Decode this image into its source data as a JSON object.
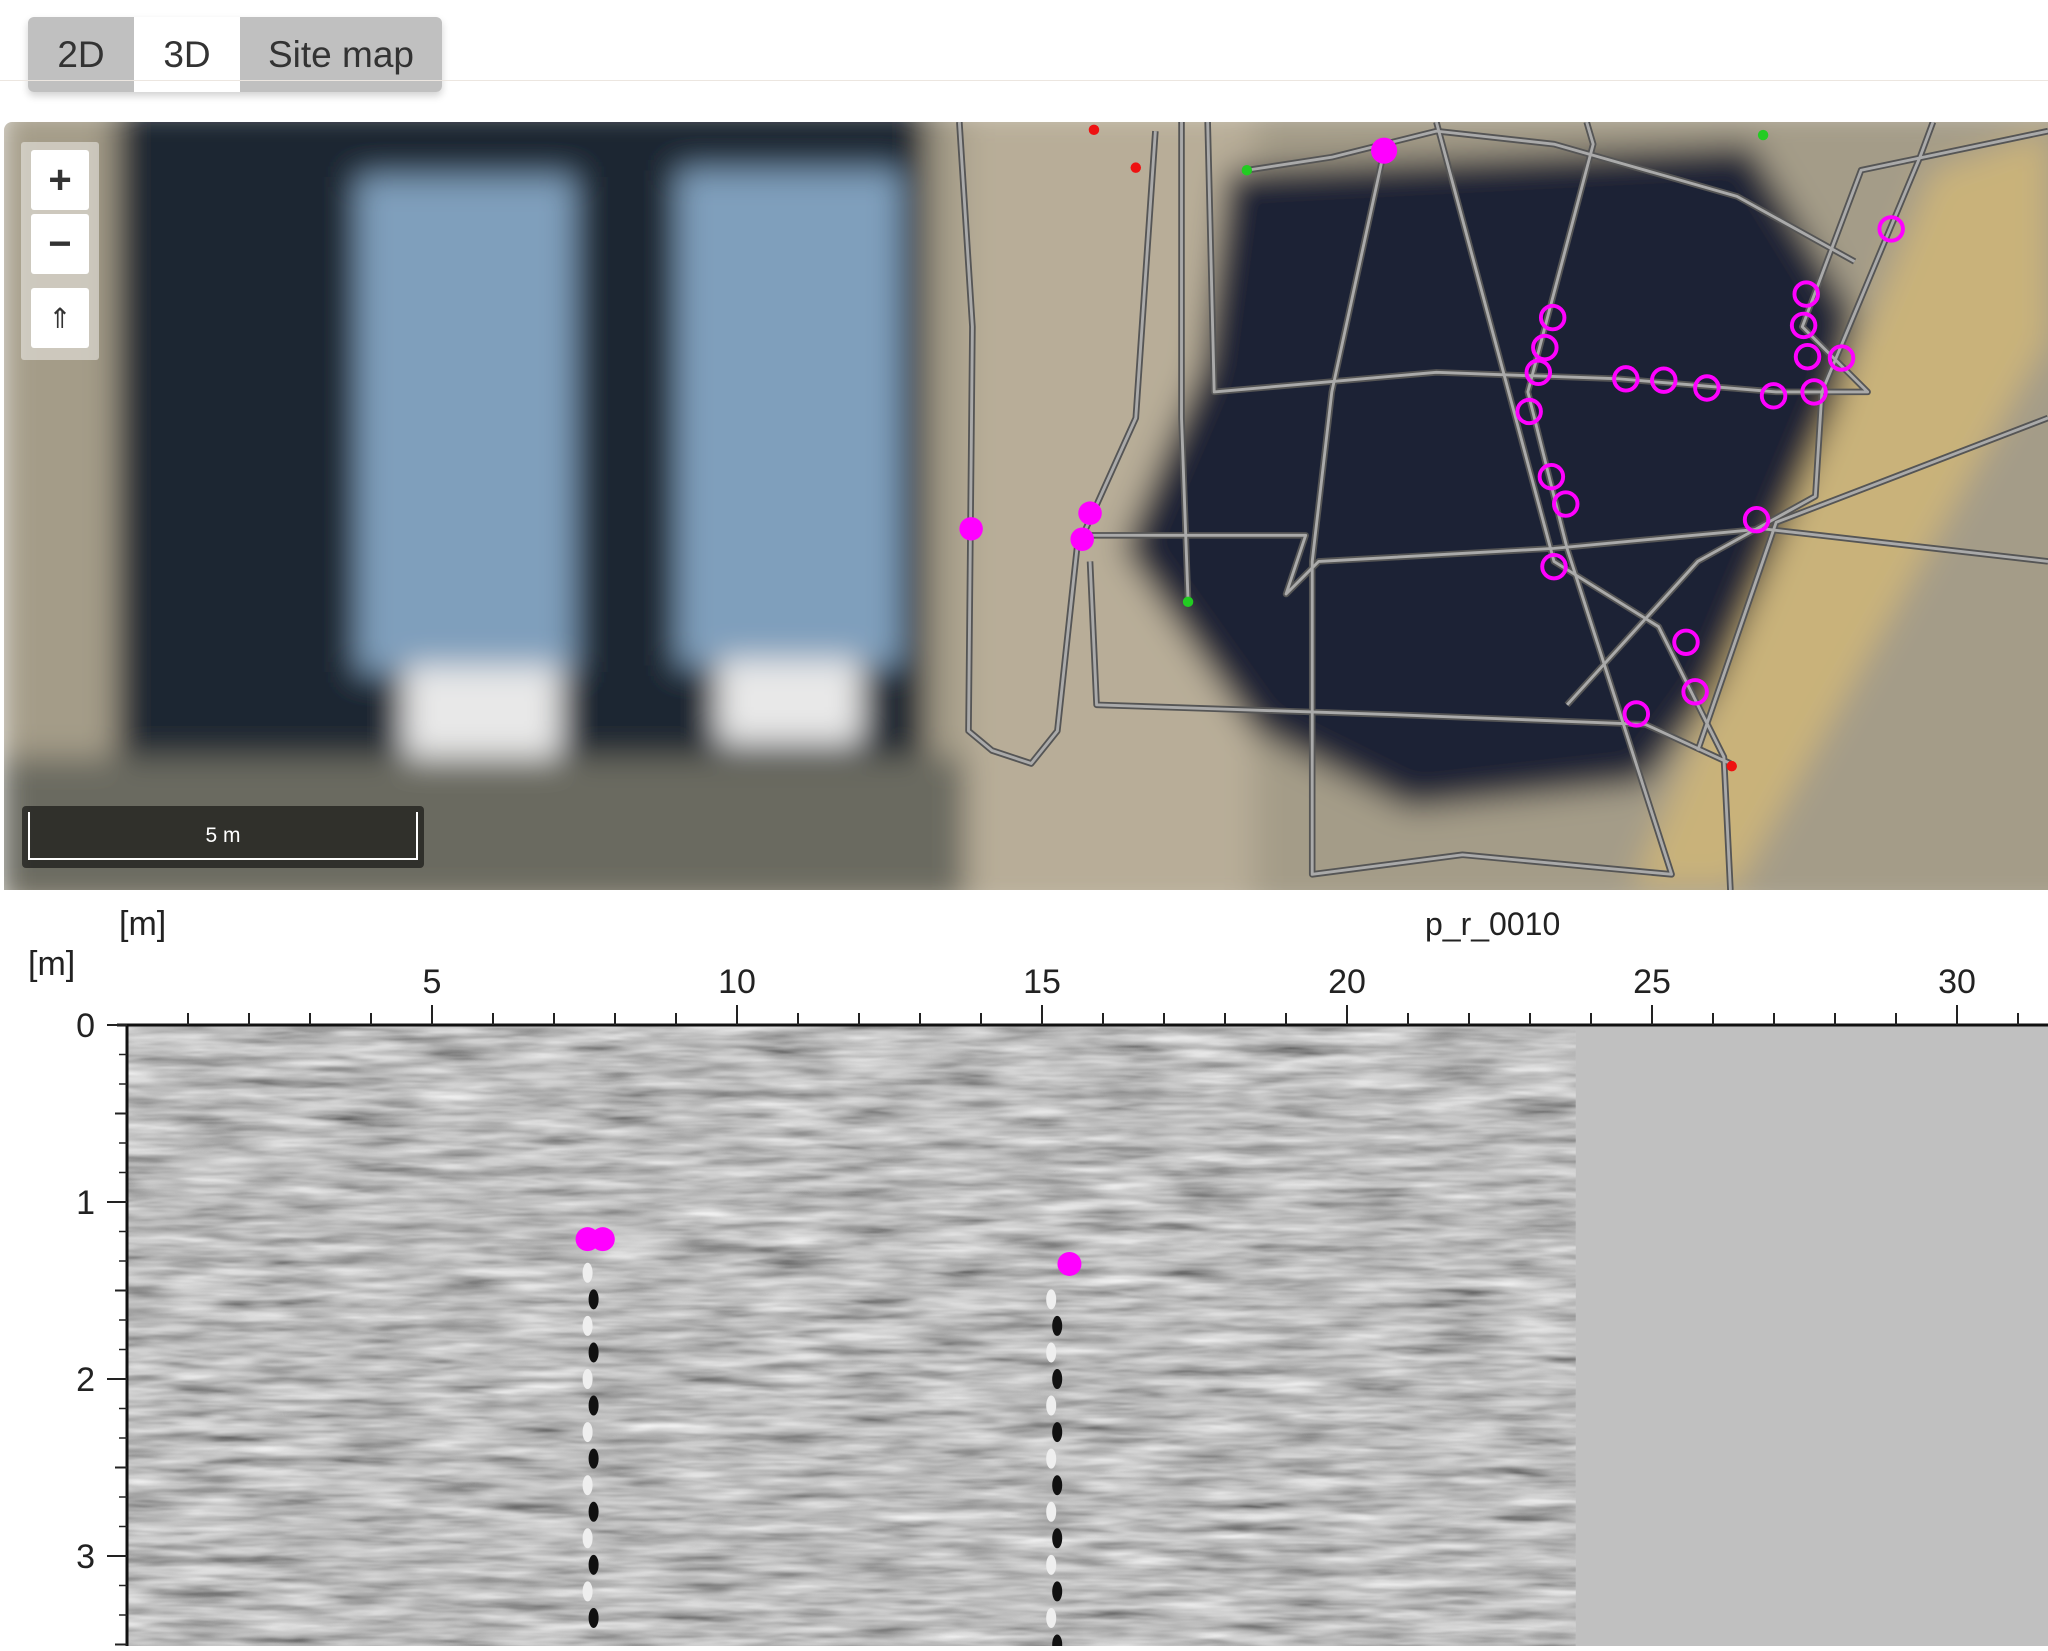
{
  "tabs": [
    {
      "label": "2D",
      "active": false
    },
    {
      "label": "3D",
      "active": true
    },
    {
      "label": "Site map",
      "active": false
    }
  ],
  "map": {
    "controls": {
      "zoom_in": "+",
      "zoom_out": "−",
      "home": "⇑"
    },
    "icons": [
      "zoom-in-icon",
      "zoom-out-icon",
      "home-arrow-icon"
    ],
    "scale_label": "5 m",
    "marker_color": "#ff00ff",
    "track_color": "#707070",
    "start_color": "#22cc22",
    "end_color": "#ee1111"
  },
  "profile": {
    "title": "p_r_0010",
    "x_unit": "[m]",
    "y_unit": "[m]",
    "x_ticks": [
      "5",
      "10",
      "15",
      "20",
      "25",
      "30"
    ],
    "y_ticks": [
      "0",
      "1",
      "2",
      "3"
    ],
    "data_end_m": 23.75,
    "marker_color": "#ff00ff",
    "no_data_color": "#c0c0c0"
  }
}
